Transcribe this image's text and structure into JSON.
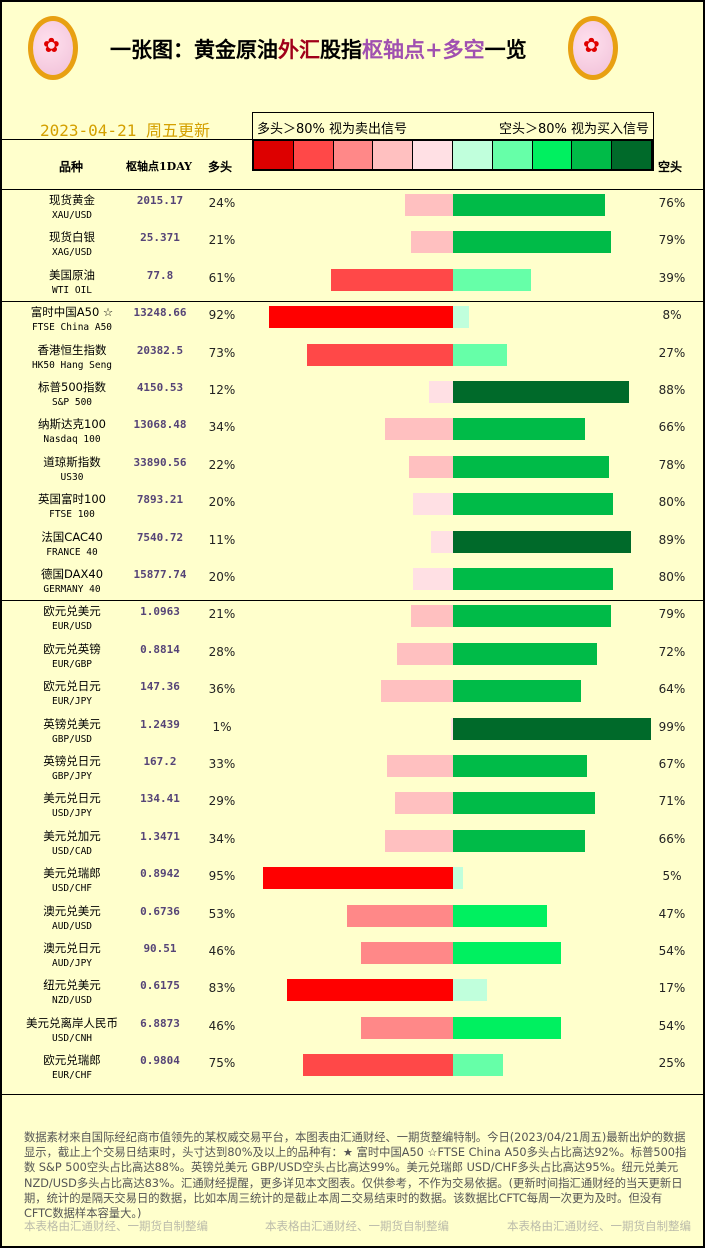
{
  "header": {
    "title_parts": [
      {
        "text": "一张图：黄金原油",
        "cls": ""
      },
      {
        "text": "外汇",
        "cls": "t-red"
      },
      {
        "text": "股指",
        "cls": ""
      },
      {
        "text": "枢轴点+多空",
        "cls": "t-pur"
      },
      {
        "text": "一览",
        "cls": ""
      }
    ],
    "date": "2023-04-21 周五更新",
    "legend_long": "多头＞80% 视为卖出信号",
    "legend_short": "空头＞80% 视为买入信号",
    "col_name": "品种",
    "col_pivot": "枢轴点1DAY",
    "col_long": "多头",
    "col_short": "空头"
  },
  "scale_colors": [
    "#dd0000",
    "#ff4848",
    "#ff8888",
    "#ffc0c0",
    "#ffe0e4",
    "#c0ffdc",
    "#66ffa8",
    "#00f060",
    "#00bb48",
    "#006a2a"
  ],
  "groups": [
    [
      {
        "cn": "现货黄金",
        "en": "XAU/USD",
        "pivot": "2015.17",
        "long": 24,
        "short": 76
      },
      {
        "cn": "现货白银",
        "en": "XAG/USD",
        "pivot": "25.371",
        "long": 21,
        "short": 79
      },
      {
        "cn": "美国原油",
        "en": "WTI OIL",
        "pivot": "77.8",
        "long": 61,
        "short": 39
      }
    ],
    [
      {
        "cn": "富时中国A50 ☆",
        "en": "FTSE China A50",
        "pivot": "13248.66",
        "long": 92,
        "short": 8
      },
      {
        "cn": "香港恒生指数",
        "en": "HK50 Hang Seng",
        "pivot": "20382.5",
        "long": 73,
        "short": 27
      },
      {
        "cn": "标普500指数",
        "en": "S&P 500",
        "pivot": "4150.53",
        "long": 12,
        "short": 88
      },
      {
        "cn": "纳斯达克100",
        "en": "Nasdaq 100",
        "pivot": "13068.48",
        "long": 34,
        "short": 66
      },
      {
        "cn": "道琼斯指数",
        "en": "US30",
        "pivot": "33890.56",
        "long": 22,
        "short": 78
      },
      {
        "cn": "英国富时100",
        "en": "FTSE 100",
        "pivot": "7893.21",
        "long": 20,
        "short": 80
      },
      {
        "cn": "法国CAC40",
        "en": "FRANCE 40",
        "pivot": "7540.72",
        "long": 11,
        "short": 89
      },
      {
        "cn": "德国DAX40",
        "en": "GERMANY 40",
        "pivot": "15877.74",
        "long": 20,
        "short": 80
      }
    ],
    [
      {
        "cn": "欧元兑美元",
        "en": "EUR/USD",
        "pivot": "1.0963",
        "long": 21,
        "short": 79
      },
      {
        "cn": "欧元兑英镑",
        "en": "EUR/GBP",
        "pivot": "0.8814",
        "long": 28,
        "short": 72
      },
      {
        "cn": "欧元兑日元",
        "en": "EUR/JPY",
        "pivot": "147.36",
        "long": 36,
        "short": 64
      },
      {
        "cn": "英镑兑美元",
        "en": "GBP/USD",
        "pivot": "1.2439",
        "long": 1,
        "short": 99
      },
      {
        "cn": "英镑兑日元",
        "en": "GBP/JPY",
        "pivot": "167.2",
        "long": 33,
        "short": 67
      },
      {
        "cn": "美元兑日元",
        "en": "USD/JPY",
        "pivot": "134.41",
        "long": 29,
        "short": 71
      },
      {
        "cn": "美元兑加元",
        "en": "USD/CAD",
        "pivot": "1.3471",
        "long": 34,
        "short": 66
      },
      {
        "cn": "美元兑瑞郎",
        "en": "USD/CHF",
        "pivot": "0.8942",
        "long": 95,
        "short": 5
      },
      {
        "cn": "澳元兑美元",
        "en": "AUD/USD",
        "pivot": "0.6736",
        "long": 53,
        "short": 47
      },
      {
        "cn": "澳元兑日元",
        "en": "AUD/JPY",
        "pivot": "90.51",
        "long": 46,
        "short": 54
      },
      {
        "cn": "纽元兑美元",
        "en": "NZD/USD",
        "pivot": "0.6175",
        "long": 83,
        "short": 17
      },
      {
        "cn": "美元兑离岸人民币",
        "en": "USD/CNH",
        "pivot": "6.8873",
        "long": 46,
        "short": 54
      },
      {
        "cn": "欧元兑瑞郎",
        "en": "EUR/CHF",
        "pivot": "0.9804",
        "long": 75,
        "short": 25
      }
    ]
  ],
  "note": "数据素材来自国际经纪商市值领先的某权威交易平台，本图表由汇通财经、一期货整编特制。今日(2023/04/21周五)最新出炉的数据显示，截止上个交易日结束时，头寸达到80%及以上的品种有：★ 富时中国A50 ☆FTSE China A50多头占比高达92%。标普500指数 S&P 500空头占比高达88%。英镑兑美元 GBP/USD空头占比高达99%。美元兑瑞郎 USD/CHF多头占比高达95%。纽元兑美元 NZD/USD多头占比高达83%。汇通财经提醒，更多详见本文图表。仅供参考，不作为交易依据。(更新时间指汇通财经的当天更新日期，统计的是隔天交易日的数据，比如本周三统计的是截止本周二交易结束时的数据。该数据比CFTC每周一次更为及时。但没有CFTC数据样本容量大。)",
  "watermark": "本表格由汇通财经、一期货自制整编"
}
